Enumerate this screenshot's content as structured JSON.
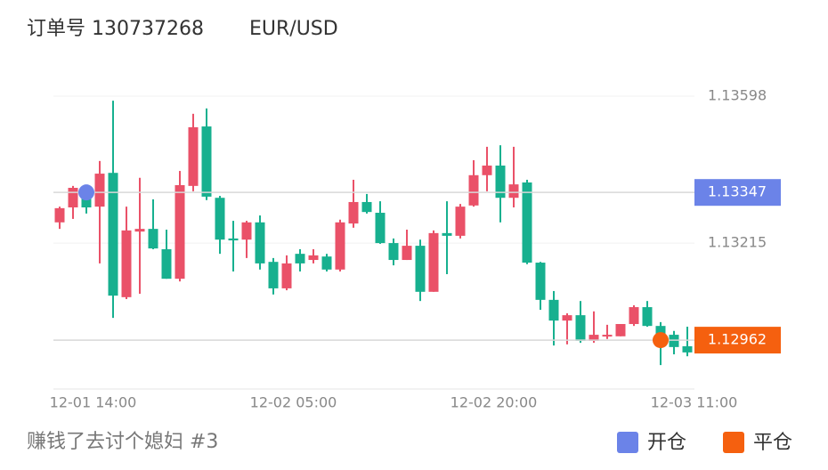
{
  "header": {
    "order": "订单号 130737268",
    "symbol": "EUR/USD"
  },
  "chart_data": {
    "type": "candlestick",
    "categories": [
      null,
      null,
      null,
      null,
      null,
      null,
      null,
      null,
      null,
      null,
      null,
      null,
      null,
      null,
      null,
      null,
      null,
      null,
      null,
      null,
      null,
      null,
      null,
      null,
      null,
      null,
      null,
      null,
      null,
      null,
      null,
      null,
      null,
      null,
      null,
      null,
      null,
      null,
      null,
      null,
      null,
      null,
      null,
      null,
      null,
      null,
      null,
      null
    ],
    "series": [
      {
        "up_color": "#ea5168",
        "down_color": "#17b08f",
        "open": [
          1.13269,
          1.13308,
          1.13347,
          1.1331,
          1.13398,
          1.13074,
          1.13245,
          1.13252,
          1.13199,
          1.13122,
          1.13364,
          1.13519,
          1.13333,
          1.13227,
          1.13224,
          1.13269,
          1.13166,
          1.13097,
          1.13187,
          1.13171,
          1.1318,
          1.13146,
          1.13266,
          1.13322,
          1.13294,
          1.13215,
          1.13171,
          1.13208,
          1.13088,
          1.13241,
          1.13234,
          1.13313,
          1.13392,
          1.13417,
          1.13333,
          1.13373,
          1.13164,
          1.13067,
          1.13013,
          1.13027,
          1.1296,
          1.12972,
          1.12972,
          1.13004,
          1.13048,
          1.12999,
          1.12976,
          1.12946
        ],
        "high": [
          1.1331,
          1.13364,
          1.13357,
          1.13429,
          1.13586,
          1.1331,
          1.13385,
          1.13329,
          1.1325,
          1.13403,
          1.13552,
          1.13566,
          1.13338,
          1.13273,
          1.13273,
          1.13287,
          1.13176,
          1.13183,
          1.13199,
          1.13199,
          1.13187,
          1.13276,
          1.1338,
          1.13343,
          1.13324,
          1.13227,
          1.1325,
          1.13224,
          1.13248,
          1.13324,
          1.13317,
          1.13431,
          1.13466,
          1.1347,
          1.13466,
          1.1338,
          1.13166,
          1.1309,
          1.13032,
          1.13064,
          1.13037,
          1.13002,
          1.13004,
          1.13053,
          1.13064,
          1.13009,
          1.12986,
          1.12997
        ],
        "low": [
          1.13252,
          1.13278,
          1.13292,
          1.13162,
          1.1302,
          1.13069,
          1.13083,
          1.13199,
          1.13122,
          1.13115,
          1.1335,
          1.13327,
          1.13187,
          1.13141,
          1.13176,
          1.13146,
          1.13081,
          1.13092,
          1.13141,
          1.13162,
          1.13141,
          1.13141,
          1.13255,
          1.13292,
          1.13213,
          1.13157,
          1.13171,
          1.13064,
          1.13088,
          1.13134,
          1.13227,
          1.1331,
          1.1335,
          1.13269,
          1.13308,
          1.1316,
          1.13041,
          1.12948,
          1.12951,
          1.12955,
          1.12955,
          1.12965,
          1.12972,
          1.12999,
          1.12997,
          1.12897,
          1.12925,
          1.1292
        ],
        "close": [
          1.13306,
          1.13359,
          1.13308,
          1.13396,
          1.13078,
          1.13248,
          1.13252,
          1.13201,
          1.13122,
          1.13366,
          1.13517,
          1.13336,
          1.13224,
          1.13222,
          1.13269,
          1.13162,
          1.13097,
          1.13162,
          1.13162,
          1.13183,
          1.13146,
          1.13269,
          1.13322,
          1.13296,
          1.13215,
          1.13171,
          1.13208,
          1.13088,
          1.13241,
          1.13234,
          1.1331,
          1.13392,
          1.13417,
          1.13333,
          1.13368,
          1.13164,
          1.13067,
          1.13013,
          1.13027,
          1.1296,
          1.12976,
          1.12976,
          1.13004,
          1.13048,
          1.12999,
          1.12972,
          1.12944,
          1.1293
        ]
      }
    ],
    "markers": [
      {
        "name": "开仓",
        "color": "#6b83e8",
        "index": 2,
        "value": 1.13347
      },
      {
        "name": "平仓",
        "color": "#f5600f",
        "index": 45,
        "value": 1.12962
      }
    ],
    "ylim": [
      1.1283,
      1.1365
    ],
    "yticks": [
      1.13598,
      1.13215
    ],
    "grid": true,
    "xticks": [
      {
        "value": 2.5,
        "label": "12-01 14:00"
      },
      {
        "value": 17.5,
        "label": "12-02 05:00"
      },
      {
        "value": 32.5,
        "label": "12-02 20:00"
      },
      {
        "value": 47.5,
        "label": "12-03 11:00"
      }
    ]
  },
  "footer": {
    "caption": "赚钱了去讨个媳妇 #3"
  }
}
